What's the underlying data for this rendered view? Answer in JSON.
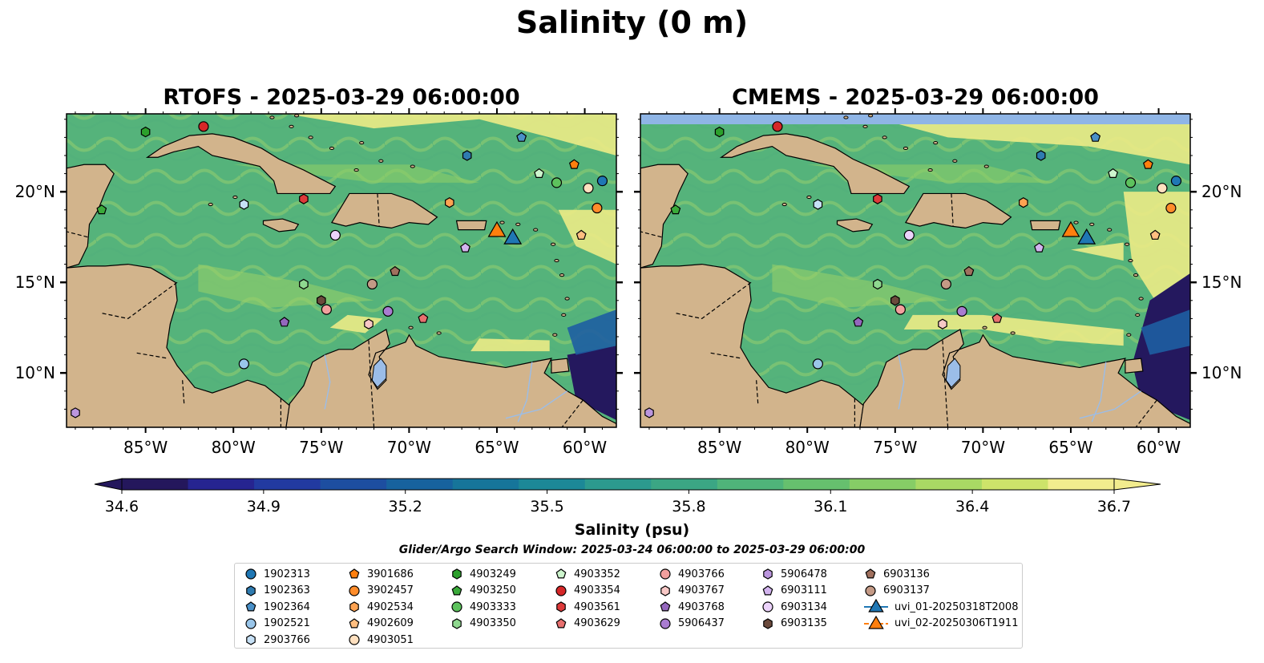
{
  "figure": {
    "suptitle": "Salinity (0 m)"
  },
  "panels": [
    {
      "title": "RTOFS - 2025-03-29 06:00:00"
    },
    {
      "title": "CMEMS - 2025-03-29 06:00:00"
    }
  ],
  "axes": {
    "lon_ticks": [
      {
        "value": -85,
        "label": "85°W"
      },
      {
        "value": -80,
        "label": "80°W"
      },
      {
        "value": -75,
        "label": "75°W"
      },
      {
        "value": -70,
        "label": "70°W"
      },
      {
        "value": -65,
        "label": "65°W"
      },
      {
        "value": -60,
        "label": "60°W"
      }
    ],
    "lat_ticks": [
      {
        "value": 10,
        "label": "10°N"
      },
      {
        "value": 15,
        "label": "15°N"
      },
      {
        "value": 20,
        "label": "20°N"
      }
    ],
    "lon_range": [
      -89.5,
      -58.2
    ],
    "lat_range": [
      7,
      24.3
    ]
  },
  "colorbar": {
    "label": "Salinity (psu)",
    "range": [
      34.6,
      36.7
    ],
    "tick_labels": [
      "34.6",
      "34.9",
      "35.2",
      "35.5",
      "35.8",
      "36.1",
      "36.4",
      "36.7"
    ],
    "colors": [
      "#24175c",
      "#262490",
      "#223aa0",
      "#1d4ea0",
      "#17629e",
      "#16759a",
      "#1c8897",
      "#2c9a8e",
      "#3ba684",
      "#4fb47a",
      "#66c06e",
      "#86cd66",
      "#a9d964",
      "#cde36a",
      "#f2ec8e"
    ],
    "extend": "both"
  },
  "search_window": "Glider/Argo Search Window: 2025-03-24 06:00:00 to 2025-03-29 06:00:00",
  "legend": [
    {
      "label": "1902313",
      "marker": "circle",
      "color": "#1f77b4"
    },
    {
      "label": "1902363",
      "marker": "hexagon",
      "color": "#2f7bb0"
    },
    {
      "label": "1902364",
      "marker": "pentagon",
      "color": "#4a90c8"
    },
    {
      "label": "1902521",
      "marker": "circle",
      "color": "#9ac6ea"
    },
    {
      "label": "2903766",
      "marker": "hexagon",
      "color": "#c6e0f5"
    },
    {
      "label": "3901686",
      "marker": "pentagon",
      "color": "#ff7f0e"
    },
    {
      "label": "3902457",
      "marker": "circle",
      "color": "#ff8c2a"
    },
    {
      "label": "4902534",
      "marker": "hexagon",
      "color": "#ffa352"
    },
    {
      "label": "4902609",
      "marker": "pentagon",
      "color": "#ffbe80"
    },
    {
      "label": "4903051",
      "marker": "circle",
      "color": "#ffe0bf"
    },
    {
      "label": "4903249",
      "marker": "hexagon",
      "color": "#2ca02c"
    },
    {
      "label": "4903250",
      "marker": "pentagon",
      "color": "#3aaa3a"
    },
    {
      "label": "4903333",
      "marker": "circle",
      "color": "#5dc25d"
    },
    {
      "label": "4903350",
      "marker": "hexagon",
      "color": "#8fd88f"
    },
    {
      "label": "4903352",
      "marker": "pentagon",
      "color": "#cdf5cd"
    },
    {
      "label": "4903354",
      "marker": "circle",
      "color": "#d62728"
    },
    {
      "label": "4903561",
      "marker": "hexagon",
      "color": "#de3a3a"
    },
    {
      "label": "4903629",
      "marker": "pentagon",
      "color": "#e8706f"
    },
    {
      "label": "4903766",
      "marker": "circle",
      "color": "#f2a09e"
    },
    {
      "label": "4903767",
      "marker": "hexagon",
      "color": "#f8c8c6"
    },
    {
      "label": "4903768",
      "marker": "pentagon",
      "color": "#9467bd"
    },
    {
      "label": "5906437",
      "marker": "circle",
      "color": "#a97cd0"
    },
    {
      "label": "5906478",
      "marker": "hexagon",
      "color": "#bb96de"
    },
    {
      "label": "6903111",
      "marker": "pentagon",
      "color": "#d3b4ef"
    },
    {
      "label": "6903134",
      "marker": "circle",
      "color": "#ecd3fb"
    },
    {
      "label": "6903135",
      "marker": "hexagon",
      "color": "#6b4a3c"
    },
    {
      "label": "6903136",
      "marker": "pentagon",
      "color": "#a0705e"
    },
    {
      "label": "6903137",
      "marker": "circle",
      "color": "#c49a86"
    },
    {
      "label": "uvi_01-20250318T2008",
      "marker": "triangle",
      "color": "#1f77b4"
    },
    {
      "label": "uvi_02-20250306T1911",
      "marker": "triangle",
      "color": "#ff7f0e"
    }
  ],
  "chart_data": {
    "type": "scatter",
    "title": "Salinity (0 m)",
    "xlabel": "",
    "ylabel": "",
    "xlim": [
      -89.5,
      -58.2
    ],
    "ylim": [
      7,
      24.3
    ],
    "colorbar_label": "Salinity (psu)",
    "colorbar_range": [
      34.6,
      36.7
    ],
    "series": [
      {
        "name": "1902313",
        "lon": -59.0,
        "lat": 20.6
      },
      {
        "name": "1902363",
        "lon": -66.7,
        "lat": 22.0
      },
      {
        "name": "1902364",
        "lon": -63.6,
        "lat": 23.0
      },
      {
        "name": "1902521",
        "lon": -79.4,
        "lat": 10.5
      },
      {
        "name": "2903766",
        "lon": -79.4,
        "lat": 19.3
      },
      {
        "name": "3901686",
        "lon": -60.6,
        "lat": 21.5
      },
      {
        "name": "3902457",
        "lon": -59.3,
        "lat": 19.1
      },
      {
        "name": "4902534",
        "lon": -67.7,
        "lat": 19.4
      },
      {
        "name": "4902609",
        "lon": -60.2,
        "lat": 17.6
      },
      {
        "name": "4903051",
        "lon": -59.8,
        "lat": 20.2
      },
      {
        "name": "4903249",
        "lon": -85.0,
        "lat": 23.3
      },
      {
        "name": "4903250",
        "lon": -87.5,
        "lat": 19.0
      },
      {
        "name": "4903333",
        "lon": -61.6,
        "lat": 20.5
      },
      {
        "name": "4903350",
        "lon": -76.0,
        "lat": 14.9
      },
      {
        "name": "4903352",
        "lon": -62.6,
        "lat": 21.0
      },
      {
        "name": "4903354",
        "lon": -81.7,
        "lat": 23.6
      },
      {
        "name": "4903561",
        "lon": -76.0,
        "lat": 19.6
      },
      {
        "name": "4903629",
        "lon": -69.2,
        "lat": 13.0
      },
      {
        "name": "4903766",
        "lon": -74.7,
        "lat": 13.5
      },
      {
        "name": "4903767",
        "lon": -72.3,
        "lat": 12.7
      },
      {
        "name": "4903768",
        "lon": -77.1,
        "lat": 12.8
      },
      {
        "name": "5906437",
        "lon": -71.2,
        "lat": 13.4
      },
      {
        "name": "5906478",
        "lon": -89.0,
        "lat": 7.8
      },
      {
        "name": "6903111",
        "lon": -66.8,
        "lat": 16.9
      },
      {
        "name": "6903134",
        "lon": -74.2,
        "lat": 17.6
      },
      {
        "name": "6903135",
        "lon": -75.0,
        "lat": 14.0
      },
      {
        "name": "6903136",
        "lon": -70.8,
        "lat": 15.6
      },
      {
        "name": "6903137",
        "lon": -72.1,
        "lat": 14.9
      },
      {
        "name": "uvi_01-20250318T2008",
        "lon": -64.1,
        "lat": 17.5
      },
      {
        "name": "uvi_02-20250306T1911",
        "lon": -65.0,
        "lat": 17.9
      }
    ]
  }
}
